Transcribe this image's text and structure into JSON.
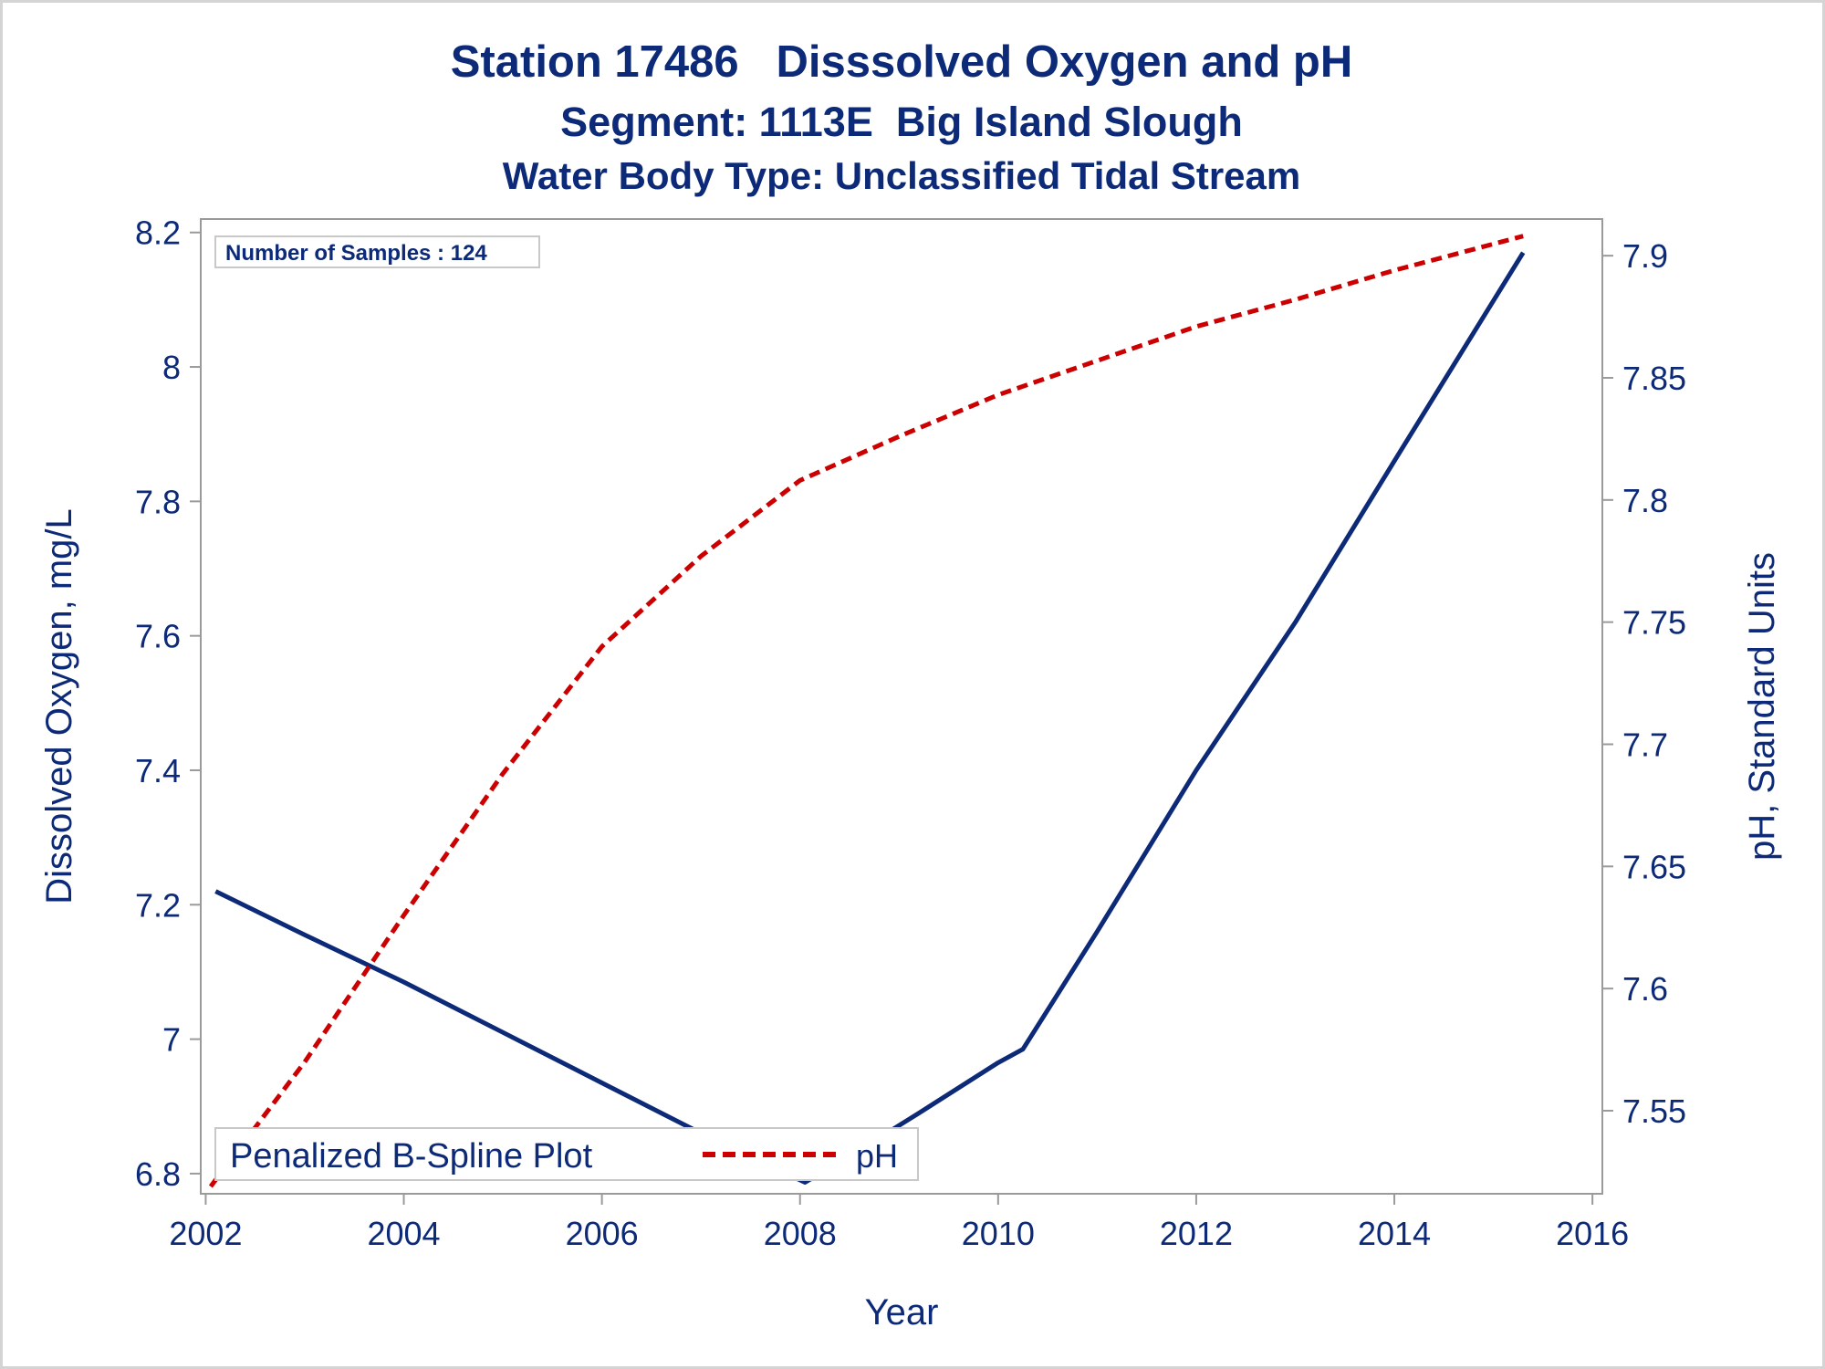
{
  "chart_data": {
    "type": "line",
    "title": "Station 17486   Disssolved Oxygen and pH",
    "subtitle": "Segment: 1113E  Big Island Slough",
    "subtitle2": "Water Body Type: Unclassified Tidal Stream",
    "xlabel": "Year",
    "ylabel_left": "Dissolved Oxygen, mg/L",
    "ylabel_right": "pH, Standard Units",
    "annotation": "Number of Samples : 124",
    "xlim": [
      2001.95,
      2016.1
    ],
    "ylim_left": [
      6.77,
      8.22
    ],
    "ylim_right": [
      7.516,
      7.915
    ],
    "x_ticks": [
      "2002",
      "2004",
      "2006",
      "2008",
      "2010",
      "2012",
      "2014",
      "2016"
    ],
    "y_left_ticks": [
      "6.8",
      "7",
      "7.2",
      "7.4",
      "7.6",
      "7.8",
      "8",
      "8.2"
    ],
    "y_right_ticks": [
      "7.55",
      "7.6",
      "7.65",
      "7.7",
      "7.75",
      "7.8",
      "7.85",
      "7.9"
    ],
    "legend": {
      "title": "Penalized B-Spline Plot",
      "entries": [
        "pH"
      ],
      "placement": "bottom-left"
    },
    "series": [
      {
        "name": "Dissolved Oxygen",
        "axis": "left",
        "style": "solid",
        "color": "#0c2a78",
        "points": [
          [
            2002.1,
            7.22
          ],
          [
            2003.0,
            7.155
          ],
          [
            2004.0,
            7.085
          ],
          [
            2005.0,
            7.01
          ],
          [
            2006.0,
            6.935
          ],
          [
            2007.0,
            6.86
          ],
          [
            2008.05,
            6.787
          ],
          [
            2008.6,
            6.835
          ],
          [
            2009.2,
            6.89
          ],
          [
            2010.0,
            6.965
          ],
          [
            2010.25,
            6.985
          ],
          [
            2011.0,
            7.16
          ],
          [
            2012.0,
            7.4
          ],
          [
            2013.0,
            7.62
          ],
          [
            2014.0,
            7.86
          ],
          [
            2015.3,
            8.17
          ]
        ]
      },
      {
        "name": "pH",
        "axis": "right",
        "style": "dashed",
        "color": "#cc0000",
        "points": [
          [
            2002.05,
            7.519
          ],
          [
            2003.0,
            7.57
          ],
          [
            2004.0,
            7.63
          ],
          [
            2005.0,
            7.688
          ],
          [
            2006.0,
            7.74
          ],
          [
            2007.0,
            7.777
          ],
          [
            2008.0,
            7.808
          ],
          [
            2009.0,
            7.826
          ],
          [
            2010.0,
            7.843
          ],
          [
            2011.0,
            7.857
          ],
          [
            2012.0,
            7.871
          ],
          [
            2013.0,
            7.882
          ],
          [
            2014.0,
            7.894
          ],
          [
            2015.3,
            7.908
          ]
        ]
      }
    ]
  }
}
